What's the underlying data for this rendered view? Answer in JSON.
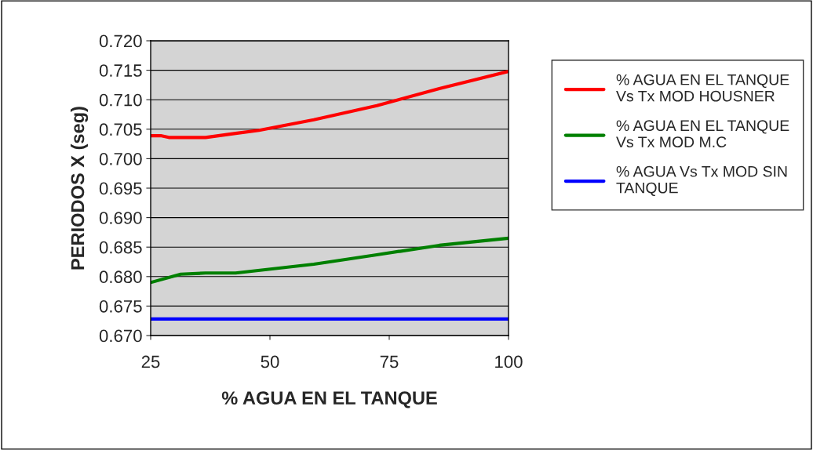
{
  "chart_data": {
    "type": "line",
    "xlabel": "% AGUA EN EL TANQUE",
    "ylabel": "PERIODOS X (seg)",
    "series": [
      {
        "name": "% AGUA EN EL TANQUE Vs Tx MOD HOUSNER",
        "color": "#ff0000",
        "x": [
          25,
          27.1,
          28.8,
          36.5,
          42.8,
          47.7,
          59.2,
          72.4,
          85.5,
          100
        ],
        "values": [
          0.7039,
          0.7039,
          0.7036,
          0.7036,
          0.7043,
          0.7048,
          0.7066,
          0.709,
          0.7119,
          0.7148
        ]
      },
      {
        "name": "% AGUA EN EL TANQUE Vs Tx MOD M.C",
        "color": "#008000",
        "x": [
          25,
          31.3,
          36.5,
          42.8,
          59.2,
          72.4,
          85.5,
          100
        ],
        "values": [
          0.679,
          0.6804,
          0.6806,
          0.6806,
          0.6821,
          0.6837,
          0.6853,
          0.6865
        ]
      },
      {
        "name": "% AGUA Vs Tx MOD SIN TANQUE",
        "color": "#0000ff",
        "x": [
          25,
          100
        ],
        "values": [
          0.6728,
          0.6728
        ]
      }
    ],
    "xlim": [
      25,
      100
    ],
    "xticks": [
      25,
      50,
      75,
      100
    ],
    "ylim": [
      0.67,
      0.72
    ],
    "yticks": [
      {
        "value": 0.67,
        "label": "0.670"
      },
      {
        "value": 0.675,
        "label": "0.675"
      },
      {
        "value": 0.68,
        "label": "0.680"
      },
      {
        "value": 0.685,
        "label": "0.685"
      },
      {
        "value": 0.69,
        "label": "0.690"
      },
      {
        "value": 0.695,
        "label": "0.695"
      },
      {
        "value": 0.7,
        "label": "0.700"
      },
      {
        "value": 0.705,
        "label": "0.705"
      },
      {
        "value": 0.71,
        "label": "0.710"
      },
      {
        "value": 0.715,
        "label": "0.715"
      },
      {
        "value": 0.72,
        "label": "0.720"
      }
    ],
    "grid": "y",
    "legend": "right",
    "marker": "none",
    "line_style": "solid"
  }
}
